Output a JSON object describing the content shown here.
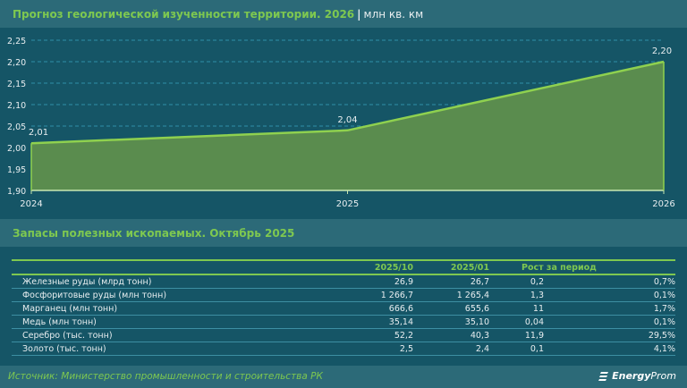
{
  "header": {
    "title": "Прогноз геологической изученности территории. 2026",
    "separator": "|",
    "unit": "млн кв. км"
  },
  "chart_data": {
    "type": "area",
    "title": "Прогноз геологической изученности территории. 2026",
    "unit": "млн кв. км",
    "x": [
      "2024",
      "2025",
      "2026"
    ],
    "values": [
      2.01,
      2.04,
      2.2
    ],
    "data_labels": [
      "2,01",
      "2,04",
      "2,20"
    ],
    "ylim": [
      1.9,
      2.25
    ],
    "yticks": [
      1.9,
      1.95,
      2.0,
      2.05,
      2.1,
      2.15,
      2.2,
      2.25
    ],
    "ytick_labels": [
      "1,90",
      "1,95",
      "2,00",
      "2,05",
      "2,10",
      "2,15",
      "2,20",
      "2,25"
    ],
    "grid": true,
    "legend": "none",
    "colors": {
      "fill": "#5a8c4e",
      "line": "#8fd14f",
      "grid": "#2f8fa8"
    }
  },
  "section2": {
    "title": "Запасы полезных ископаемых. Октябрь 2025"
  },
  "table": {
    "headers": [
      "",
      "2025/10",
      "2025/01",
      "Рост за период",
      ""
    ],
    "rows": [
      [
        "Железные руды (млрд тонн)",
        "26,9",
        "26,7",
        "0,2",
        "0,7%"
      ],
      [
        "Фосфоритовые руды (млн тонн)",
        "1 266,7",
        "1 265,4",
        "1,3",
        "0,1%"
      ],
      [
        "Марганец (млн тонн)",
        "666,6",
        "655,6",
        "11",
        "1,7%"
      ],
      [
        "Медь (млн тонн)",
        "35,14",
        "35,10",
        "0,04",
        "0,1%"
      ],
      [
        "Серебро (тыс. тонн)",
        "52,2",
        "40,3",
        "11,9",
        "29,5%"
      ],
      [
        "Золото (тыс. тонн)",
        "2,5",
        "2,4",
        "0,1",
        "4,1%"
      ]
    ]
  },
  "footer": {
    "source": "Источник: Министерство промышленности и строительства РК",
    "logo_bold": "Energy",
    "logo_light": "Prom"
  },
  "colors": {
    "background": "#155566",
    "band": "#2c6a78",
    "accent": "#7ec850",
    "text": "#e8eef0"
  }
}
